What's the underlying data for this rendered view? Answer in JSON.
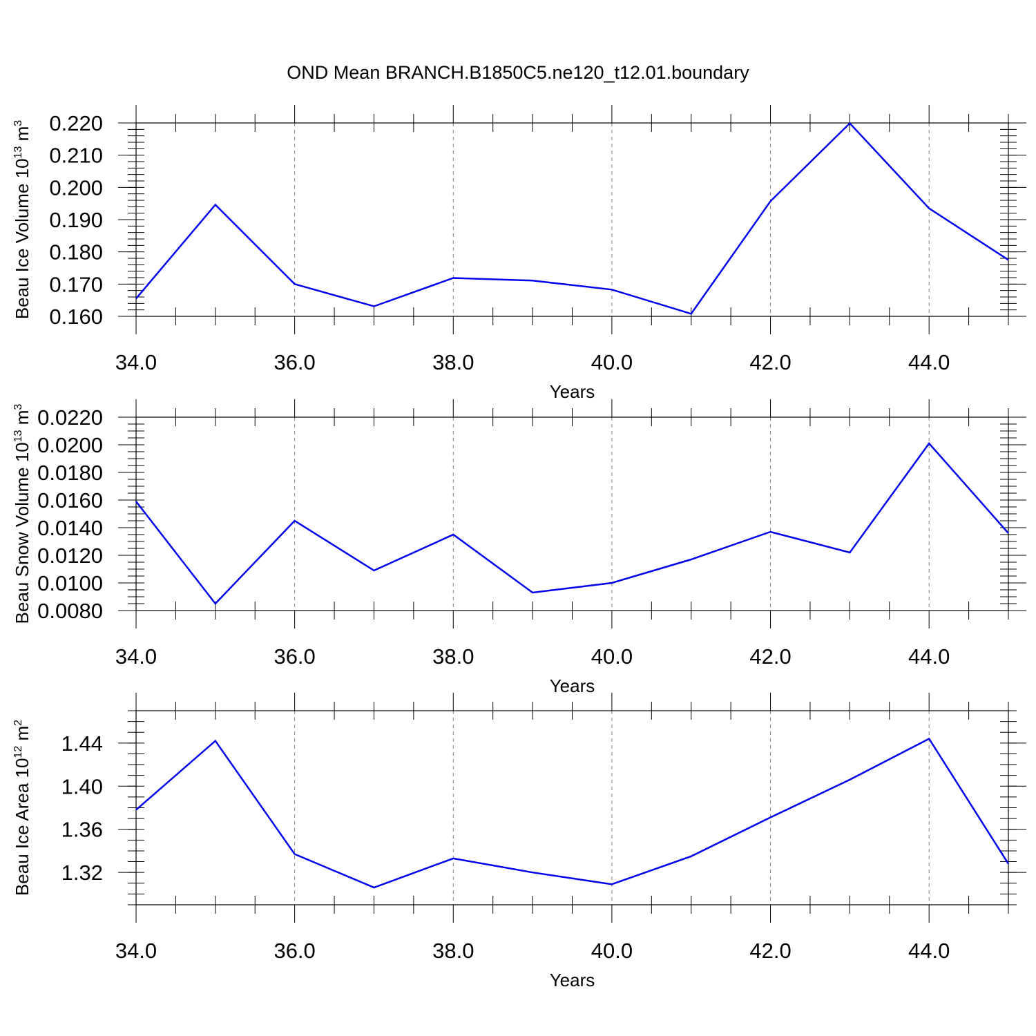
{
  "title": "OND Mean BRANCH.B1850C5.ne120_t12.01.boundary",
  "colors": {
    "series": "#0000ee",
    "grid": "#808080",
    "frame": "#000000"
  },
  "chart_data": [
    {
      "type": "line",
      "xlabel": "Years",
      "ylabel": {
        "base": "Beau Ice Volume 10",
        "sup": "13",
        "unit": " m",
        "unit_sup": "3"
      },
      "x": [
        34,
        35,
        36,
        37,
        38,
        39,
        40,
        41,
        42,
        43,
        44,
        45
      ],
      "series": [
        {
          "values": [
            0.1655,
            0.1946,
            0.17,
            0.1631,
            0.1719,
            0.1711,
            0.1683,
            0.1608,
            0.1957,
            0.2199,
            0.1935,
            0.1775
          ]
        }
      ],
      "xlim": [
        34,
        45
      ],
      "ylim": [
        0.16,
        0.22
      ],
      "xticks": [
        34,
        36,
        38,
        40,
        42,
        44
      ],
      "xtick_labels": [
        "34.0",
        "36.0",
        "38.0",
        "40.0",
        "42.0",
        "44.0"
      ],
      "yticks": [
        0.16,
        0.17,
        0.18,
        0.19,
        0.2,
        0.21,
        0.22
      ],
      "ytick_labels": [
        "0.160",
        "0.170",
        "0.180",
        "0.190",
        "0.200",
        "0.210",
        "0.220"
      ],
      "y_minor_step": 0.002,
      "grid": "x-dashed"
    },
    {
      "type": "line",
      "xlabel": "Years",
      "ylabel": {
        "base": "Beau Snow Volume 10",
        "sup": "13",
        "unit": " m",
        "unit_sup": "3"
      },
      "x": [
        34,
        35,
        36,
        37,
        38,
        39,
        40,
        41,
        42,
        43,
        44,
        45
      ],
      "series": [
        {
          "values": [
            0.0159,
            0.0085,
            0.0145,
            0.0109,
            0.0135,
            0.0093,
            0.01,
            0.0117,
            0.0137,
            0.0122,
            0.0201,
            0.0136
          ]
        }
      ],
      "xlim": [
        34,
        45
      ],
      "ylim": [
        0.008,
        0.022
      ],
      "xticks": [
        34,
        36,
        38,
        40,
        42,
        44
      ],
      "xtick_labels": [
        "34.0",
        "36.0",
        "38.0",
        "40.0",
        "42.0",
        "44.0"
      ],
      "yticks": [
        0.008,
        0.01,
        0.012,
        0.014,
        0.016,
        0.018,
        0.02,
        0.022
      ],
      "ytick_labels": [
        "0.0080",
        "0.0100",
        "0.0120",
        "0.0140",
        "0.0160",
        "0.0180",
        "0.0200",
        "0.0220"
      ],
      "y_minor_step": 0.0005,
      "grid": "x-dashed"
    },
    {
      "type": "line",
      "xlabel": "Years",
      "ylabel": {
        "base": "Beau Ice Area 10",
        "sup": "12",
        "unit": " m",
        "unit_sup": "2"
      },
      "x": [
        34,
        35,
        36,
        37,
        38,
        39,
        40,
        41,
        42,
        43,
        44,
        45
      ],
      "series": [
        {
          "values": [
            1.378,
            1.442,
            1.337,
            1.306,
            1.333,
            1.32,
            1.309,
            1.335,
            1.371,
            1.406,
            1.444,
            1.328
          ]
        }
      ],
      "xlim": [
        34,
        45
      ],
      "ylim": [
        1.29,
        1.47
      ],
      "xticks": [
        34,
        36,
        38,
        40,
        42,
        44
      ],
      "xtick_labels": [
        "34.0",
        "36.0",
        "38.0",
        "40.0",
        "42.0",
        "44.0"
      ],
      "yticks": [
        1.32,
        1.36,
        1.4,
        1.44
      ],
      "ytick_labels": [
        "1.32",
        "1.36",
        "1.40",
        "1.44"
      ],
      "y_minor_step": 0.01,
      "grid": "x-dashed"
    }
  ]
}
